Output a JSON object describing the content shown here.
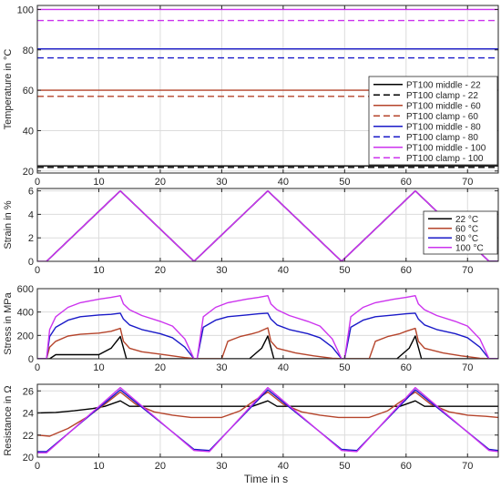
{
  "figure": {
    "xlabel": "Time in s"
  },
  "chart_data": [
    {
      "type": "line",
      "ylabel": "Temperature in °C",
      "xlim": [
        0,
        75
      ],
      "ylim": [
        19,
        102
      ],
      "xticks": [
        0,
        10,
        20,
        30,
        40,
        50,
        60,
        70
      ],
      "yticks": [
        20,
        40,
        60,
        80,
        100
      ],
      "grid": true,
      "legend_position": "bottom-right",
      "series": [
        {
          "name": "PT100 middle - 22",
          "color": "#000000",
          "dash": "solid",
          "x": [
            0,
            75
          ],
          "y": [
            22.5,
            22.5
          ]
        },
        {
          "name": "PT100 clamp - 22",
          "color": "#000000",
          "dash": "dashed",
          "x": [
            0,
            75
          ],
          "y": [
            21.8,
            21.8
          ]
        },
        {
          "name": "PT100 middle - 60",
          "color": "#b5442b",
          "dash": "solid",
          "x": [
            0,
            75
          ],
          "y": [
            60,
            60
          ]
        },
        {
          "name": "PT100 clamp - 60",
          "color": "#b5442b",
          "dash": "dashed",
          "x": [
            0,
            75
          ],
          "y": [
            57,
            57
          ]
        },
        {
          "name": "PT100 middle - 80",
          "color": "#1a1ac8",
          "dash": "solid",
          "x": [
            0,
            75
          ],
          "y": [
            80.5,
            80.5
          ]
        },
        {
          "name": "PT100 clamp - 80",
          "color": "#1a1ac8",
          "dash": "dashed",
          "x": [
            0,
            75
          ],
          "y": [
            76,
            76
          ]
        },
        {
          "name": "PT100 middle - 100",
          "color": "#cc33ee",
          "dash": "solid",
          "x": [
            0,
            75
          ],
          "y": [
            100,
            100
          ]
        },
        {
          "name": "PT100 clamp - 100",
          "color": "#cc33ee",
          "dash": "dashed",
          "x": [
            0,
            75
          ],
          "y": [
            94.5,
            94.5
          ]
        }
      ]
    },
    {
      "type": "line",
      "ylabel": "Strain in %",
      "xlim": [
        0,
        75
      ],
      "ylim": [
        0,
        6.2
      ],
      "xticks": [
        0,
        10,
        20,
        30,
        40,
        50,
        60,
        70
      ],
      "yticks": [
        0,
        2,
        4,
        6
      ],
      "grid": true,
      "legend_position": "right",
      "series": [
        {
          "name": "22 °C",
          "color": "#000000",
          "x": [
            1.5,
            13.5,
            25.5,
            37.5,
            49.5,
            61.5,
            73.5,
            75
          ],
          "y": [
            0,
            6,
            0,
            6,
            0,
            6,
            0,
            0
          ]
        },
        {
          "name": "60 °C",
          "color": "#b5442b",
          "x": [
            1.5,
            13.5,
            25.5,
            37.5,
            49.5,
            61.5,
            73.5,
            75
          ],
          "y": [
            0,
            6,
            0,
            6,
            0,
            6,
            0,
            0
          ]
        },
        {
          "name": "80 °C",
          "color": "#1a1ac8",
          "x": [
            1.5,
            13.5,
            25.5,
            37.5,
            49.5,
            61.5,
            73.5,
            75
          ],
          "y": [
            0,
            6,
            0,
            6,
            0,
            6,
            0,
            0
          ]
        },
        {
          "name": "100 °C",
          "color": "#cc33ee",
          "x": [
            0,
            1.5,
            13.5,
            25.5,
            37.5,
            49.5,
            61.5,
            73.5,
            75
          ],
          "y": [
            0,
            0,
            6,
            0,
            6,
            0,
            6,
            0,
            0
          ]
        }
      ]
    },
    {
      "type": "line",
      "ylabel": "Stress in MPa",
      "xlim": [
        0,
        75
      ],
      "ylim": [
        0,
        600
      ],
      "xticks": [
        0,
        10,
        20,
        30,
        40,
        50,
        60,
        70
      ],
      "yticks": [
        0,
        200,
        400,
        600
      ],
      "grid": true,
      "series": [
        {
          "name": "22 °C",
          "color": "#000000",
          "x": [
            0,
            2,
            3,
            10,
            12,
            13.5,
            14.5,
            26,
            26.5,
            34.5,
            36.5,
            37.5,
            38.5,
            50,
            50.5,
            58.5,
            60.5,
            61.5,
            62.5,
            75
          ],
          "y": [
            0,
            0,
            35,
            35,
            90,
            190,
            0,
            0,
            0,
            0,
            90,
            195,
            0,
            0,
            0,
            0,
            90,
            195,
            0,
            0
          ]
        },
        {
          "name": "60 °C",
          "color": "#b5442b",
          "x": [
            0,
            1.5,
            2,
            3,
            5,
            7,
            10,
            12,
            13.5,
            14,
            15,
            17,
            20,
            22,
            24,
            26,
            30,
            31,
            33,
            35,
            36,
            37.5,
            38,
            39,
            42,
            45,
            48,
            50,
            54,
            55,
            57,
            59,
            60,
            61.5,
            62,
            63,
            66,
            69,
            72,
            74,
            75
          ],
          "y": [
            0,
            0,
            100,
            150,
            195,
            210,
            220,
            235,
            260,
            150,
            90,
            60,
            40,
            25,
            10,
            0,
            0,
            150,
            190,
            215,
            230,
            265,
            150,
            90,
            50,
            25,
            5,
            0,
            0,
            150,
            190,
            215,
            235,
            260,
            150,
            90,
            50,
            25,
            5,
            0,
            0
          ]
        },
        {
          "name": "80 °C",
          "color": "#1a1ac8",
          "x": [
            0,
            1.5,
            2,
            3,
            5,
            7,
            10,
            12,
            13.5,
            14,
            15,
            17,
            20,
            22,
            24,
            25.5,
            26,
            27,
            29,
            31,
            34,
            36,
            37.5,
            38,
            39,
            41,
            44,
            46,
            48,
            49.5,
            50,
            51,
            53,
            55,
            58,
            60,
            61.5,
            62,
            63,
            65,
            68,
            70,
            72,
            73.5,
            75
          ],
          "y": [
            0,
            0,
            190,
            270,
            330,
            360,
            375,
            380,
            390,
            340,
            290,
            250,
            215,
            180,
            100,
            0,
            0,
            270,
            330,
            360,
            375,
            385,
            390,
            340,
            290,
            250,
            215,
            180,
            100,
            0,
            0,
            270,
            330,
            360,
            375,
            385,
            390,
            340,
            290,
            250,
            215,
            180,
            100,
            0,
            0
          ]
        },
        {
          "name": "100 °C",
          "color": "#cc33ee",
          "x": [
            0,
            1.5,
            2,
            3,
            5,
            7,
            10,
            12,
            13.5,
            14,
            15,
            17,
            20,
            22,
            24,
            25.5,
            26,
            27,
            29,
            31,
            34,
            36,
            37.5,
            38,
            39,
            41,
            44,
            46,
            48,
            49.5,
            50,
            51,
            53,
            55,
            58,
            60,
            61.5,
            62,
            63,
            65,
            68,
            70,
            72,
            73.5,
            75
          ],
          "y": [
            0,
            0,
            250,
            360,
            440,
            480,
            510,
            525,
            540,
            470,
            420,
            370,
            320,
            280,
            170,
            0,
            0,
            360,
            440,
            480,
            510,
            525,
            540,
            470,
            420,
            370,
            320,
            280,
            170,
            0,
            0,
            360,
            440,
            480,
            510,
            525,
            540,
            470,
            420,
            370,
            320,
            280,
            170,
            0,
            0
          ]
        }
      ]
    },
    {
      "type": "line",
      "ylabel": "Resistance in Ω",
      "xlim": [
        0,
        75
      ],
      "ylim": [
        20,
        26.6
      ],
      "xticks": [
        0,
        10,
        20,
        30,
        40,
        50,
        60,
        70
      ],
      "yticks": [
        20,
        22,
        24,
        26
      ],
      "grid": true,
      "series": [
        {
          "name": "22 °C",
          "color": "#000000",
          "x": [
            0,
            3,
            6,
            9,
            11,
            13.5,
            15,
            20,
            25,
            30,
            35,
            37.5,
            39,
            45,
            50,
            55,
            59,
            61.5,
            63,
            70,
            75
          ],
          "y": [
            24,
            24.05,
            24.2,
            24.4,
            24.6,
            25.1,
            24.6,
            24.6,
            24.6,
            24.6,
            24.6,
            25.1,
            24.6,
            24.6,
            24.6,
            24.6,
            24.6,
            25.1,
            24.6,
            24.6,
            24.6
          ]
        },
        {
          "name": "60 °C",
          "color": "#b5442b",
          "x": [
            0,
            2,
            5,
            8,
            11,
            13.5,
            16,
            19,
            22,
            25,
            30,
            33,
            35,
            37.5,
            40,
            43,
            46,
            49,
            54,
            57,
            59,
            61.5,
            64,
            67,
            70,
            73,
            75
          ],
          "y": [
            22,
            21.9,
            22.6,
            23.6,
            24.8,
            25.9,
            24.8,
            24.1,
            23.8,
            23.6,
            23.6,
            24.2,
            25,
            25.9,
            24.8,
            24.1,
            23.8,
            23.6,
            23.6,
            24.2,
            25,
            25.9,
            24.8,
            24.1,
            23.8,
            23.7,
            23.6
          ]
        },
        {
          "name": "80 °C",
          "color": "#1a1ac8",
          "x": [
            0,
            1.5,
            13.5,
            25.5,
            28,
            37.5,
            49.5,
            52,
            61.5,
            73.5,
            75
          ],
          "y": [
            20.5,
            20.5,
            26.1,
            20.7,
            20.6,
            26.1,
            20.7,
            20.6,
            26.1,
            20.7,
            20.6
          ]
        },
        {
          "name": "100 °C",
          "color": "#cc33ee",
          "x": [
            0,
            1.5,
            13.5,
            25.5,
            28,
            37.5,
            49.5,
            52,
            61.5,
            73.5,
            75
          ],
          "y": [
            20.4,
            20.4,
            26.3,
            20.6,
            20.5,
            26.3,
            20.6,
            20.5,
            26.3,
            20.6,
            20.5
          ]
        }
      ]
    }
  ]
}
